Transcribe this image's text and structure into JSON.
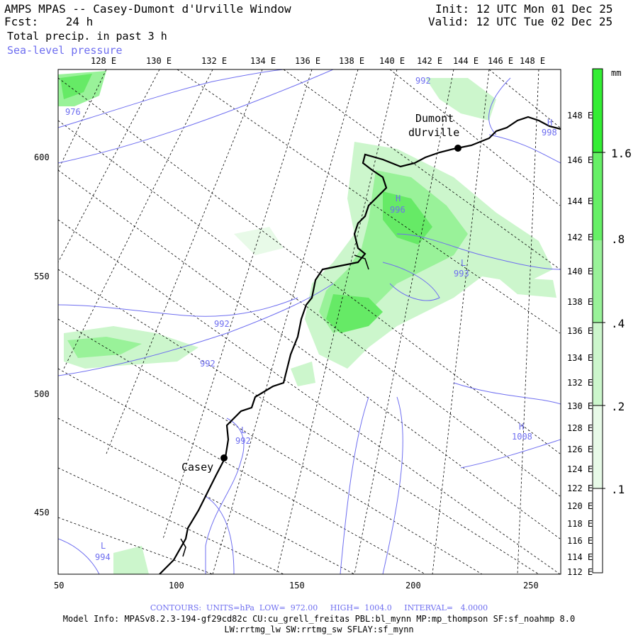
{
  "header": {
    "title": "AMPS MPAS -- Casey-Dumont d'Urville Window",
    "fcst_label": "Fcst:",
    "fcst_value": "24 h",
    "field": "Total precip. in past 3 h",
    "overlay": "Sea-level pressure",
    "init_label": "Init:",
    "init_value": "12 UTC Mon 01 Dec 25",
    "valid_label": "Valid:",
    "valid_value": "12 UTC Tue 02 Dec 25"
  },
  "axes": {
    "top_lon_ticks": [
      "128 E",
      "130 E",
      "132 E",
      "134 E",
      "136 E",
      "138 E",
      "140 E",
      "142 E",
      "144 E",
      "146 E",
      "148 E"
    ],
    "right_lon_ticks": [
      "148 E",
      "146 E",
      "144 E",
      "142 E",
      "140 E",
      "138 E",
      "136 E",
      "134 E",
      "132 E",
      "130 E",
      "128 E",
      "126 E",
      "124 E",
      "122 E",
      "120 E",
      "118 E",
      "116 E",
      "114 E",
      "112 E"
    ],
    "x_ticks": [
      "50",
      "100",
      "150",
      "200",
      "250"
    ],
    "y_ticks": [
      "600",
      "550",
      "500",
      "450"
    ]
  },
  "stations": {
    "dumont_line1": "Dumont",
    "dumont_line2": "dUrville",
    "casey": "Casey"
  },
  "pressure_labels": {
    "p976": "976",
    "p992a": "992",
    "p992b": "992",
    "p992c": "992",
    "p992d": "992",
    "p993": "993",
    "p994": "994",
    "p996": "996",
    "p998": "998",
    "p1008": "1008",
    "h1": "H",
    "h2": "H",
    "h3": "H",
    "l1": "L",
    "l2": "L",
    "l3": "L"
  },
  "colorbar": {
    "unit": "mm",
    "labels": [
      "1.6",
      ".8",
      ".4",
      ".2",
      ".1"
    ],
    "colors": [
      "#33ee33",
      "#66f066",
      "#99f299",
      "#ccf6cc",
      "#e8fae8",
      "#ffffff"
    ]
  },
  "footer": {
    "contours": "CONTOURS:  UNITS=hPa  LOW=  972.00     HIGH=  1004.0     INTERVAL=   4.0000",
    "model_info": "Model Info: MPASv8.2.3-194-gf29cd82c CU:cu_grell_freitas PBL:bl_mynn MP:mp_thompson SF:sf_noahmp 8.0",
    "model_info2": "LW:rrtmg_lw SW:rrtmg_sw SFLAY:sf_mynn"
  },
  "colors": {
    "contour": "#6e6ef0",
    "precip_light": "#ccf6cc",
    "precip_mid": "#99f299",
    "precip_strong": "#55ea55"
  }
}
